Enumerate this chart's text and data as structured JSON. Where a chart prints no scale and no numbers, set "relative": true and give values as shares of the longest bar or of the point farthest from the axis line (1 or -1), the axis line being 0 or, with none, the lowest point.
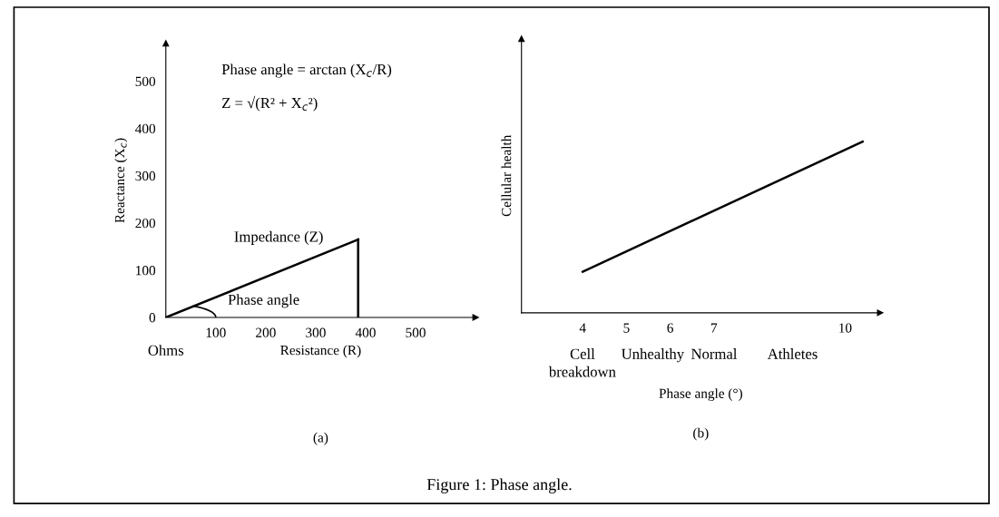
{
  "chart_data": [
    {
      "type": "line",
      "title": "(a)",
      "xlabel": "Resistance (R)",
      "ylabel": "Reactance (X$_{c}$)",
      "xlim": [
        0,
        620
      ],
      "ylim": [
        0,
        580
      ],
      "xticks": [
        100,
        200,
        300,
        400,
        500
      ],
      "yticks": [
        0,
        100,
        200,
        300,
        400,
        500
      ],
      "series": [
        {
          "color": "#000000",
          "x": [
            0,
            385
          ],
          "values": [
            0,
            165
          ],
          "marker": "none"
        },
        {
          "color": "#000000",
          "x": [
            385,
            385
          ],
          "values": [
            0,
            165
          ],
          "marker": "none"
        }
      ],
      "annotations": [
        "Phase angle = arctan (X$_{c}$/R)",
        "Z = √(R² + X$_{c}$²)",
        "Impedance (Z)",
        "Phase angle",
        "Ohms",
        "Figure 1: Phase angle."
      ]
    },
    {
      "type": "line",
      "title": "(b)",
      "xlabel": "Phase angle (°)",
      "ylabel": "Cellular health",
      "relative": true,
      "xlim": [
        2.6,
        10.8
      ],
      "xticks": [
        4,
        5,
        6,
        7,
        10
      ],
      "series": [
        {
          "color": "#000000",
          "x": [
            4,
            10.4
          ],
          "values": [
            0.24,
            1
          ]
        }
      ],
      "annotations": [
        "Cell\nbreakdown",
        "Unhealthy",
        "Normal",
        "Athletes"
      ]
    }
  ]
}
